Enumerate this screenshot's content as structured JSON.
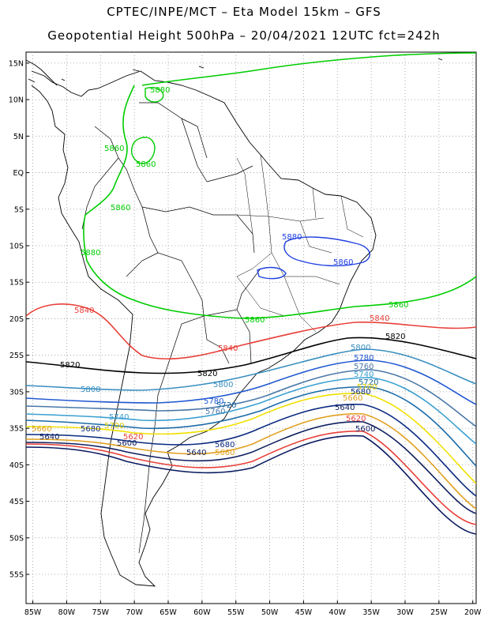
{
  "header": {
    "line1": "CPTEC/INPE/MCT –  Eta Model 15km – GFS",
    "line2": "Geopotential Height 500hPa – 20/04/2021 12UTC fct=242h"
  },
  "map": {
    "lon_labels": [
      "85W",
      "80W",
      "75W",
      "70W",
      "65W",
      "60W",
      "55W",
      "50W",
      "45W",
      "40W",
      "35W",
      "30W",
      "25W",
      "20W"
    ],
    "lat_labels": [
      "15N",
      "10N",
      "5N",
      "EQ",
      "5S",
      "10S",
      "15S",
      "20S",
      "25S",
      "30S",
      "35S",
      "40S",
      "45S",
      "50S",
      "55S"
    ],
    "extent": {
      "lon": [
        -86,
        -19.5
      ],
      "lat": [
        16.5,
        -59
      ]
    }
  },
  "contours": [
    {
      "level": "5880",
      "color": "#00cc00"
    },
    {
      "level": "5860",
      "color": "#00cc00"
    },
    {
      "level": "5880",
      "color": "#2040e0"
    },
    {
      "level": "5860",
      "color": "#2040e0"
    },
    {
      "level": "5840",
      "color": "#e8403a"
    },
    {
      "level": "5820",
      "color": "#000000"
    },
    {
      "level": "5800",
      "color": "#3a8fc0"
    },
    {
      "level": "5780",
      "color": "#2058d0"
    },
    {
      "level": "5760",
      "color": "#4a78a8"
    },
    {
      "level": "5740",
      "color": "#3aa0d0"
    },
    {
      "level": "5720",
      "color": "#f0e000"
    },
    {
      "level": "5700",
      "color": "#f0e000"
    },
    {
      "level": "5680",
      "color": "#0a2a80"
    },
    {
      "level": "5660",
      "color": "#e0a020"
    },
    {
      "level": "5640",
      "color": "#102060"
    },
    {
      "level": "5620",
      "color": "#e8403a"
    },
    {
      "level": "5600",
      "color": "#0a1a60"
    }
  ]
}
